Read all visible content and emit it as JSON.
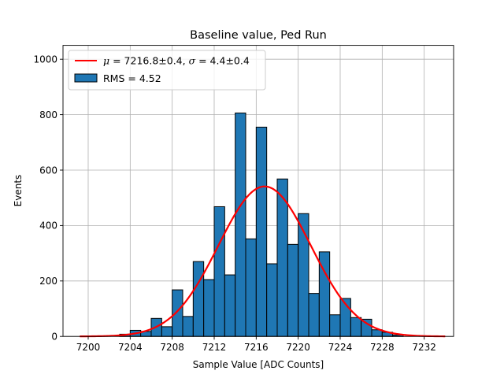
{
  "chart_data": {
    "type": "bar",
    "title": "Baseline value, Ped Run",
    "xlabel": "Sample Value [ADC Counts]",
    "ylabel": "Events",
    "xlim": [
      7197.6,
      7234.8
    ],
    "ylim": [
      0,
      1050
    ],
    "xticks": [
      7200,
      7204,
      7208,
      7212,
      7216,
      7220,
      7224,
      7228,
      7232
    ],
    "yticks": [
      0,
      200,
      400,
      600,
      800,
      1000
    ],
    "grid": true,
    "legend_position": "top-left",
    "bin_width": 1,
    "histogram": {
      "name": "RMS = 4.52",
      "color": "#1f77b4",
      "edge_color": "#000000",
      "bin_left_edges": [
        7203,
        7204,
        7205,
        7206,
        7207,
        7208,
        7209,
        7210,
        7211,
        7212,
        7213,
        7214,
        7215,
        7216,
        7217,
        7218,
        7219,
        7220,
        7221,
        7222,
        7223,
        7224,
        7225,
        7226,
        7227,
        7228,
        7229
      ],
      "values": [
        8,
        22,
        18,
        65,
        35,
        168,
        72,
        270,
        205,
        468,
        222,
        806,
        352,
        755,
        262,
        568,
        332,
        443,
        155,
        305,
        78,
        137,
        68,
        62,
        24,
        15,
        5
      ]
    },
    "fit": {
      "name": "μ = 7216.8±0.4, σ = 4.4±0.4",
      "name_parts": {
        "mu_symbol": "μ",
        "mu_value": " = 7216.8±0.4, ",
        "sigma_symbol": "σ",
        "sigma_value": " = 4.4±0.4"
      },
      "color": "#ff0000",
      "model": "gaussian",
      "mu": 7216.8,
      "sigma": 4.4,
      "amplitude": 541,
      "x_range": [
        7199.2,
        7234.0
      ]
    }
  }
}
